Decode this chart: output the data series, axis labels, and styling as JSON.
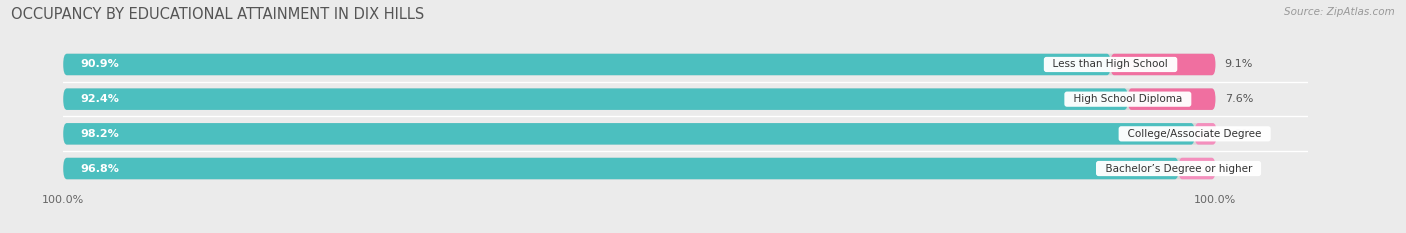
{
  "title": "OCCUPANCY BY EDUCATIONAL ATTAINMENT IN DIX HILLS",
  "source": "Source: ZipAtlas.com",
  "categories": [
    "Less than High School",
    "High School Diploma",
    "College/Associate Degree",
    "Bachelor’s Degree or higher"
  ],
  "owner_pct": [
    90.9,
    92.4,
    98.2,
    96.8
  ],
  "renter_pct": [
    9.1,
    7.6,
    1.9,
    3.2
  ],
  "owner_color": "#4cbfbf",
  "renter_color": "#f06fa0",
  "renter_color_light": "#f7aec8",
  "bar_height": 0.62,
  "title_fontsize": 10.5,
  "label_fontsize": 8.0,
  "tick_fontsize": 8.0,
  "source_fontsize": 7.5,
  "bg_color": "#ebebeb",
  "bar_bg_color": "#d8d8d8",
  "legend_fontsize": 8.5,
  "owner_label_color": "white",
  "renter_label_color": "#555555",
  "cat_label_color": "#333333"
}
